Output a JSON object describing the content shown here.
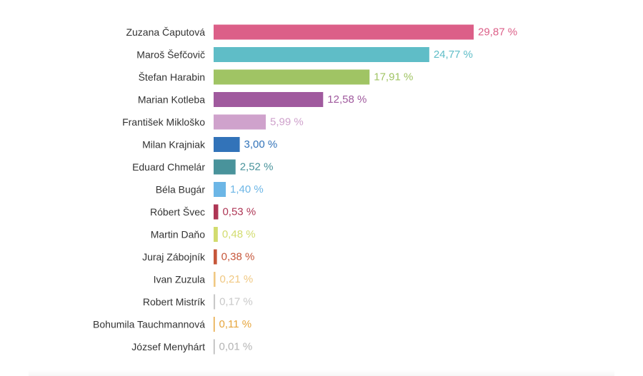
{
  "chart_data": {
    "type": "bar",
    "orientation": "horizontal",
    "title": "",
    "xlabel": "",
    "ylabel": "",
    "xlim": [
      0,
      29.87
    ],
    "grid": false,
    "legend": "none",
    "categories": [
      "Zuzana Čaputová",
      "Maroš Šefčovič",
      "Štefan Harabin",
      "Marian Kotleba",
      "František Mikloško",
      "Milan Krajniak",
      "Eduard Chmelár",
      "Béla Bugár",
      "Róbert Švec",
      "Martin Daňo",
      "Juraj Zábojník",
      "Ivan Zuzula",
      "Robert Mistrík",
      "Bohumila Tauchmannová",
      "József Menyhárt"
    ],
    "values": [
      29.87,
      24.77,
      17.91,
      12.58,
      5.99,
      3.0,
      2.52,
      1.4,
      0.53,
      0.48,
      0.38,
      0.21,
      0.17,
      0.11,
      0.01
    ],
    "value_labels": [
      "29,87 %",
      "24,77 %",
      "17,91 %",
      "12,58 %",
      "5,99 %",
      "3,00 %",
      "2,52 %",
      "1,40 %",
      "0,53 %",
      "0,48 %",
      "0,38 %",
      "0,21 %",
      "0,17 %",
      "0,11 %",
      "0,01 %"
    ],
    "colors": [
      "#dc5f88",
      "#5fbdc7",
      "#a0c464",
      "#a05a9e",
      "#cfa2cc",
      "#3273b9",
      "#49939b",
      "#6cb6e6",
      "#ae3655",
      "#d2dc6e",
      "#c6563a",
      "#f0c882",
      "#c8c8c8",
      "#e6a53c",
      "#b4b4b4"
    ]
  }
}
